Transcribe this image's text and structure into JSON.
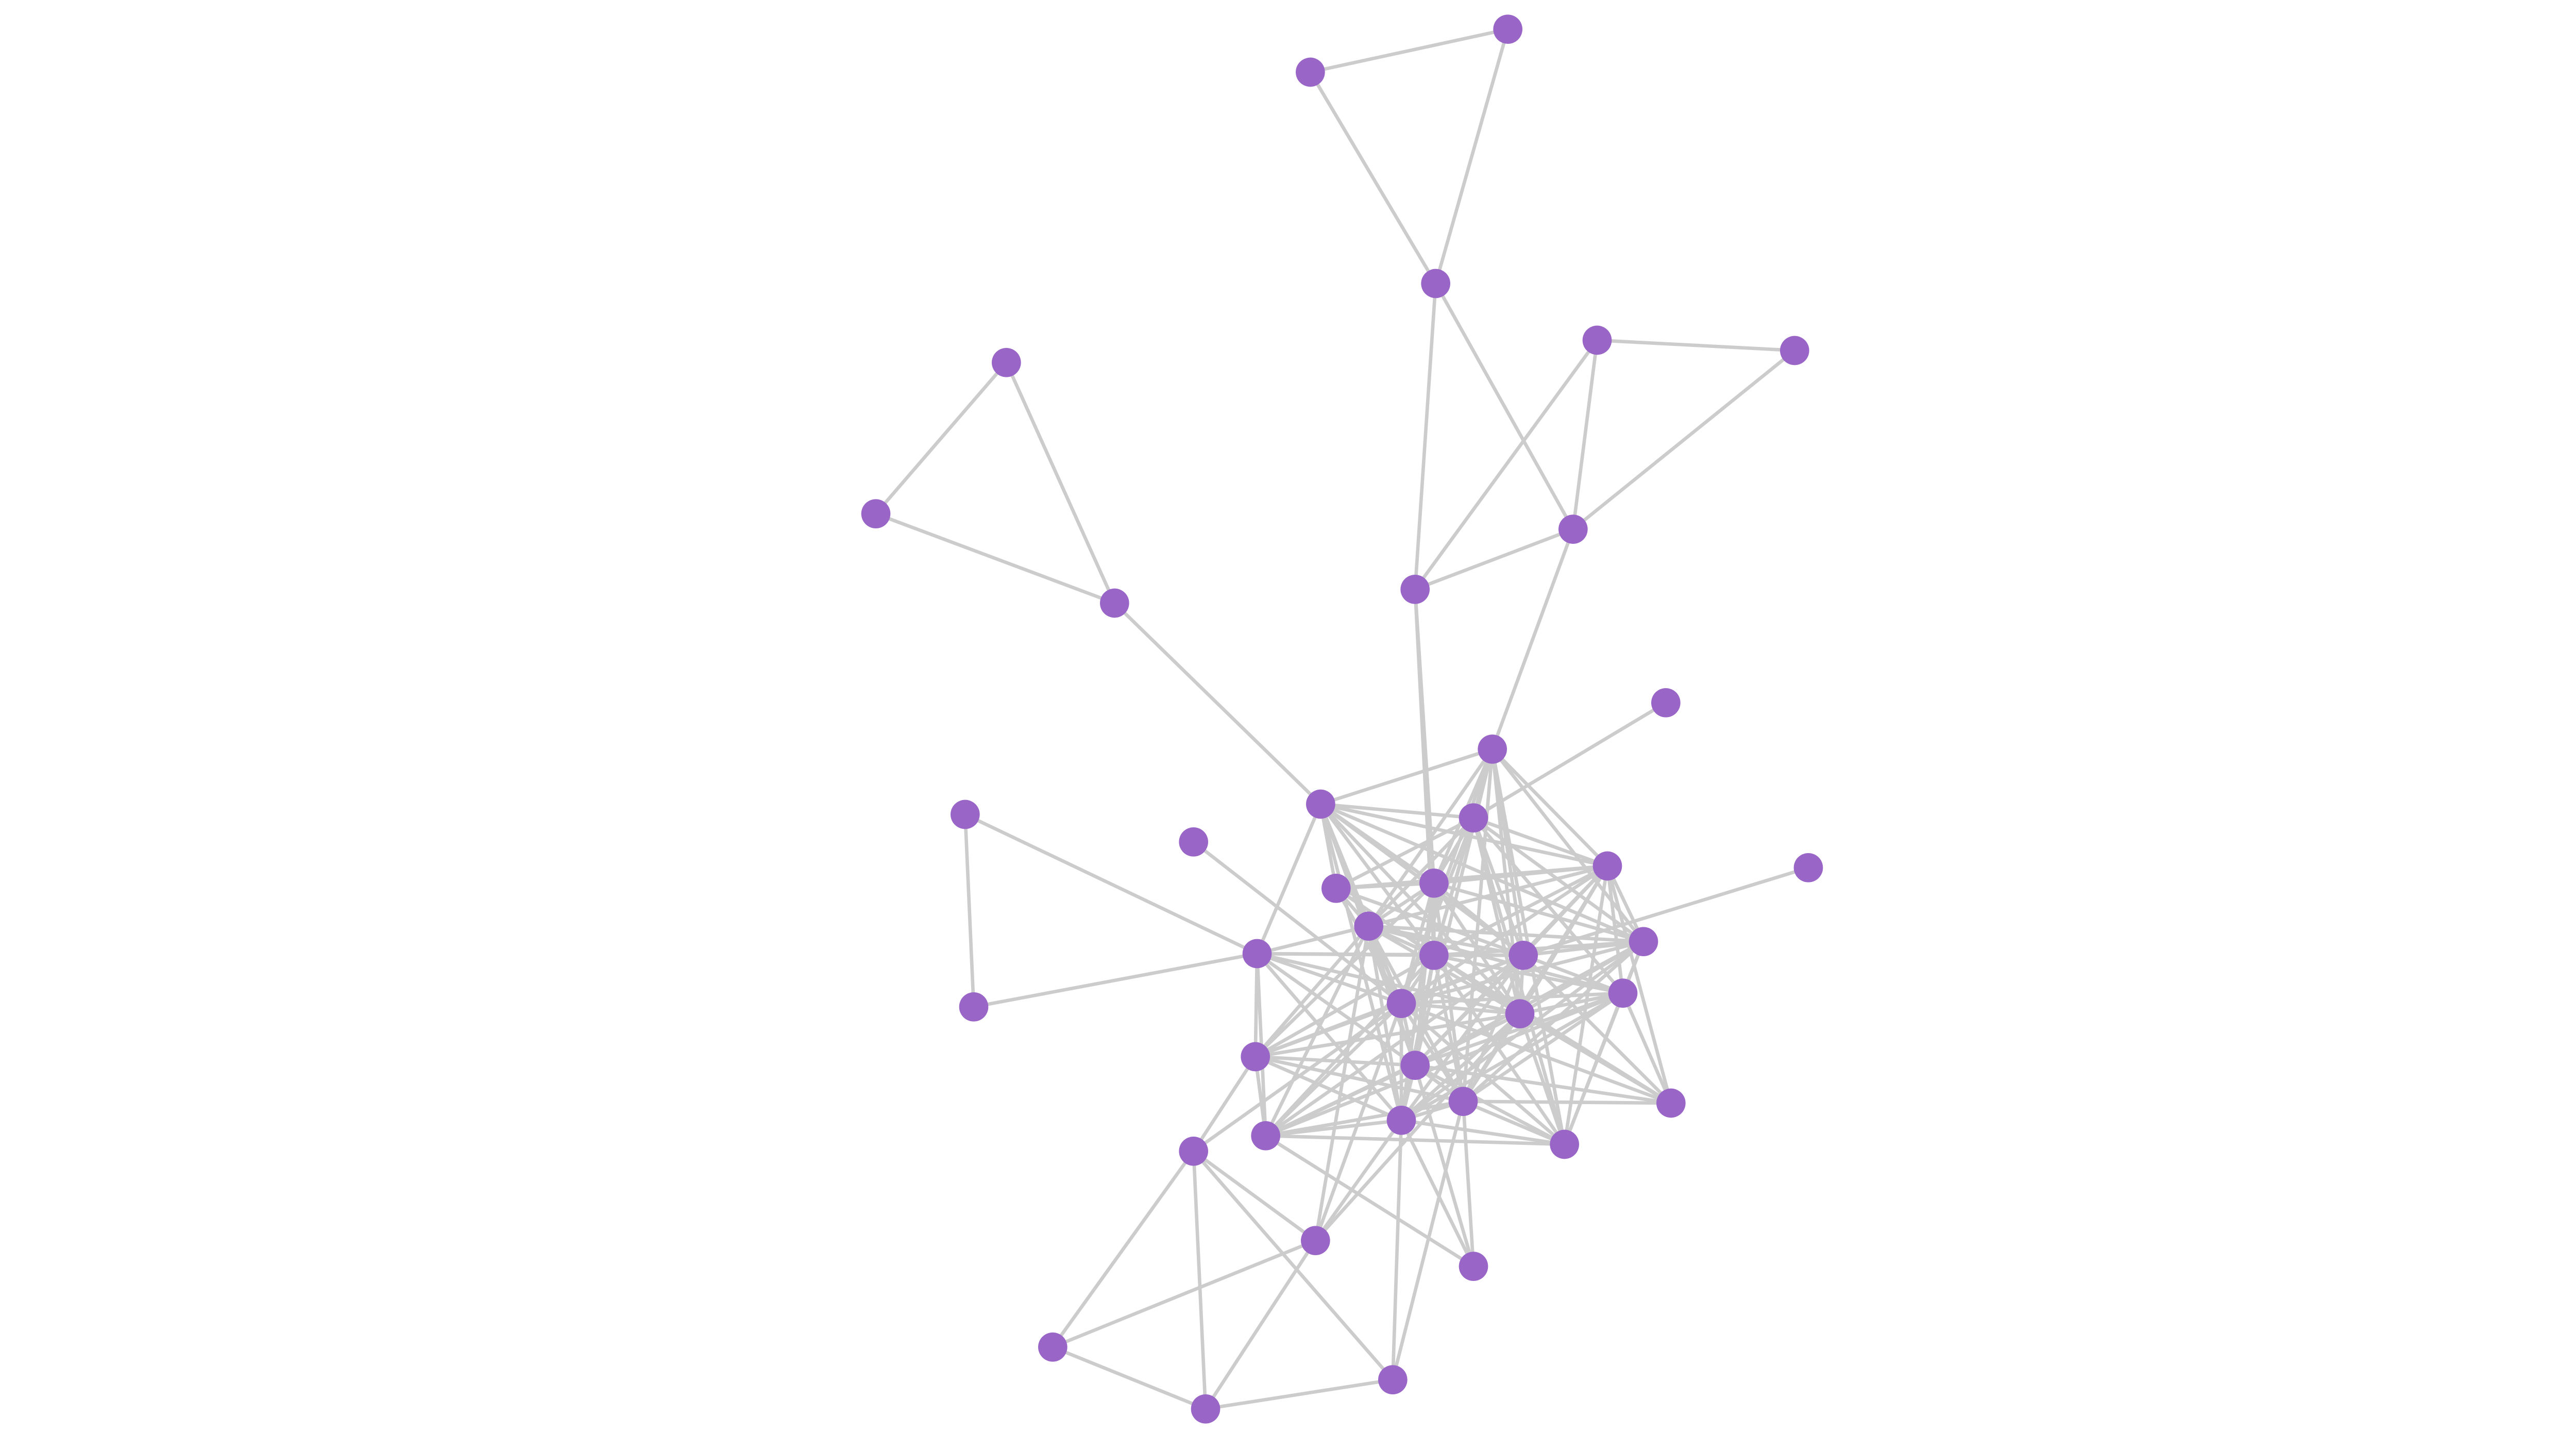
{
  "graph": {
    "type": "network",
    "node_color": "#9966c8",
    "edge_color": "#cccccc",
    "background": "#ffffff",
    "node_count": 42,
    "edges": [
      [
        1,
        0
      ],
      [
        0,
        2
      ],
      [
        1,
        2
      ],
      [
        2,
        8
      ],
      [
        2,
        7
      ],
      [
        3,
        4
      ],
      [
        3,
        7
      ],
      [
        3,
        8
      ],
      [
        4,
        7
      ],
      [
        7,
        8
      ],
      [
        7,
        11
      ],
      [
        5,
        6
      ],
      [
        5,
        9
      ],
      [
        6,
        9
      ],
      [
        9,
        12
      ],
      [
        8,
        19
      ],
      [
        8,
        23
      ],
      [
        10,
        13
      ],
      [
        14,
        26
      ],
      [
        14,
        22
      ],
      [
        26,
        22
      ],
      [
        15,
        27
      ],
      [
        17,
        24
      ],
      [
        36,
        39
      ],
      [
        36,
        41
      ],
      [
        36,
        40
      ],
      [
        36,
        37
      ],
      [
        39,
        37
      ],
      [
        39,
        41
      ],
      [
        41,
        40
      ],
      [
        41,
        37
      ],
      [
        40,
        31
      ],
      [
        40,
        33
      ],
      [
        37,
        33
      ],
      [
        37,
        28
      ],
      [
        38,
        34
      ],
      [
        38,
        33
      ],
      [
        38,
        30
      ],
      [
        38,
        31
      ],
      [
        36,
        29
      ],
      [
        36,
        27
      ],
      [
        11,
        12
      ],
      [
        11,
        13
      ],
      [
        11,
        16
      ],
      [
        11,
        19
      ],
      [
        11,
        20
      ],
      [
        11,
        23
      ],
      [
        11,
        24
      ],
      [
        11,
        27
      ],
      [
        11,
        28
      ],
      [
        11,
        30
      ],
      [
        11,
        31
      ],
      [
        11,
        35
      ],
      [
        11,
        21
      ],
      [
        12,
        13
      ],
      [
        12,
        18
      ],
      [
        12,
        19
      ],
      [
        12,
        20
      ],
      [
        12,
        22
      ],
      [
        12,
        23
      ],
      [
        12,
        24
      ],
      [
        12,
        27
      ],
      [
        12,
        28
      ],
      [
        12,
        30
      ],
      [
        12,
        33
      ],
      [
        12,
        16
      ],
      [
        12,
        21
      ],
      [
        13,
        16
      ],
      [
        13,
        18
      ],
      [
        13,
        19
      ],
      [
        13,
        20
      ],
      [
        13,
        23
      ],
      [
        13,
        24
      ],
      [
        13,
        25
      ],
      [
        13,
        27
      ],
      [
        13,
        28
      ],
      [
        13,
        21
      ],
      [
        13,
        35
      ],
      [
        16,
        19
      ],
      [
        16,
        20
      ],
      [
        16,
        21
      ],
      [
        16,
        23
      ],
      [
        16,
        24
      ],
      [
        16,
        25
      ],
      [
        16,
        27
      ],
      [
        16,
        28
      ],
      [
        16,
        30
      ],
      [
        16,
        31
      ],
      [
        16,
        32
      ],
      [
        16,
        35
      ],
      [
        18,
        19
      ],
      [
        18,
        20
      ],
      [
        18,
        23
      ],
      [
        18,
        24
      ],
      [
        18,
        27
      ],
      [
        18,
        28
      ],
      [
        18,
        16
      ],
      [
        19,
        20
      ],
      [
        19,
        21
      ],
      [
        19,
        23
      ],
      [
        19,
        24
      ],
      [
        19,
        27
      ],
      [
        19,
        28
      ],
      [
        19,
        29
      ],
      [
        19,
        30
      ],
      [
        19,
        31
      ],
      [
        19,
        33
      ],
      [
        20,
        21
      ],
      [
        20,
        22
      ],
      [
        20,
        23
      ],
      [
        20,
        24
      ],
      [
        20,
        25
      ],
      [
        20,
        27
      ],
      [
        20,
        28
      ],
      [
        20,
        29
      ],
      [
        20,
        30
      ],
      [
        20,
        31
      ],
      [
        20,
        33
      ],
      [
        20,
        34
      ],
      [
        20,
        37
      ],
      [
        21,
        23
      ],
      [
        21,
        24
      ],
      [
        21,
        25
      ],
      [
        21,
        27
      ],
      [
        21,
        28
      ],
      [
        21,
        30
      ],
      [
        21,
        31
      ],
      [
        21,
        33
      ],
      [
        21,
        35
      ],
      [
        22,
        23
      ],
      [
        22,
        24
      ],
      [
        22,
        27
      ],
      [
        22,
        28
      ],
      [
        22,
        29
      ],
      [
        22,
        30
      ],
      [
        22,
        33
      ],
      [
        22,
        34
      ],
      [
        23,
        24
      ],
      [
        23,
        25
      ],
      [
        23,
        27
      ],
      [
        23,
        28
      ],
      [
        23,
        29
      ],
      [
        23,
        30
      ],
      [
        23,
        31
      ],
      [
        23,
        33
      ],
      [
        23,
        34
      ],
      [
        23,
        35
      ],
      [
        23,
        32
      ],
      [
        24,
        25
      ],
      [
        24,
        27
      ],
      [
        24,
        28
      ],
      [
        24,
        29
      ],
      [
        24,
        30
      ],
      [
        24,
        31
      ],
      [
        24,
        33
      ],
      [
        24,
        34
      ],
      [
        24,
        32
      ],
      [
        25,
        27
      ],
      [
        25,
        28
      ],
      [
        25,
        30
      ],
      [
        25,
        31
      ],
      [
        25,
        33
      ],
      [
        25,
        34
      ],
      [
        25,
        35
      ],
      [
        25,
        32
      ],
      [
        27,
        28
      ],
      [
        27,
        29
      ],
      [
        27,
        30
      ],
      [
        27,
        31
      ],
      [
        27,
        33
      ],
      [
        27,
        34
      ],
      [
        27,
        35
      ],
      [
        27,
        32
      ],
      [
        27,
        37
      ],
      [
        28,
        29
      ],
      [
        28,
        30
      ],
      [
        28,
        31
      ],
      [
        28,
        33
      ],
      [
        28,
        34
      ],
      [
        28,
        35
      ],
      [
        28,
        32
      ],
      [
        29,
        30
      ],
      [
        29,
        31
      ],
      [
        29,
        33
      ],
      [
        29,
        34
      ],
      [
        30,
        31
      ],
      [
        30,
        33
      ],
      [
        30,
        34
      ],
      [
        30,
        35
      ],
      [
        30,
        32
      ],
      [
        31,
        33
      ],
      [
        31,
        34
      ],
      [
        31,
        35
      ],
      [
        31,
        32
      ],
      [
        33,
        34
      ],
      [
        33,
        35
      ],
      [
        34,
        35
      ]
    ]
  }
}
